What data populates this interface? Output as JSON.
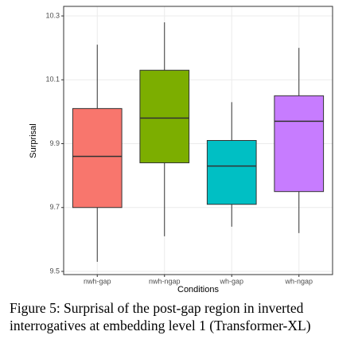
{
  "chart_data": {
    "type": "box",
    "xlabel": "Conditions",
    "ylabel": "Surprisal",
    "categories": [
      "nwh-gap",
      "nwh-ngap",
      "wh-gap",
      "wh-ngap"
    ],
    "colors": [
      "#F8766D",
      "#7CAE00",
      "#00BFC4",
      "#C77CFF"
    ],
    "boxes": [
      {
        "min": 9.53,
        "q1": 9.7,
        "median": 9.86,
        "q3": 10.01,
        "max": 10.21
      },
      {
        "min": 9.61,
        "q1": 9.84,
        "median": 9.98,
        "q3": 10.13,
        "max": 10.28
      },
      {
        "min": 9.64,
        "q1": 9.71,
        "median": 9.83,
        "q3": 9.91,
        "max": 10.03
      },
      {
        "min": 9.62,
        "q1": 9.75,
        "median": 9.97,
        "q3": 10.05,
        "max": 10.2
      }
    ],
    "ylim": [
      9.49,
      10.33
    ],
    "yticks": [
      9.5,
      9.7,
      9.9,
      10.1,
      10.3
    ],
    "grid": true
  },
  "caption": "Figure 5: Surprisal of the post-gap region in inverted interrogatives at embedding level 1 (Transformer-XL)"
}
